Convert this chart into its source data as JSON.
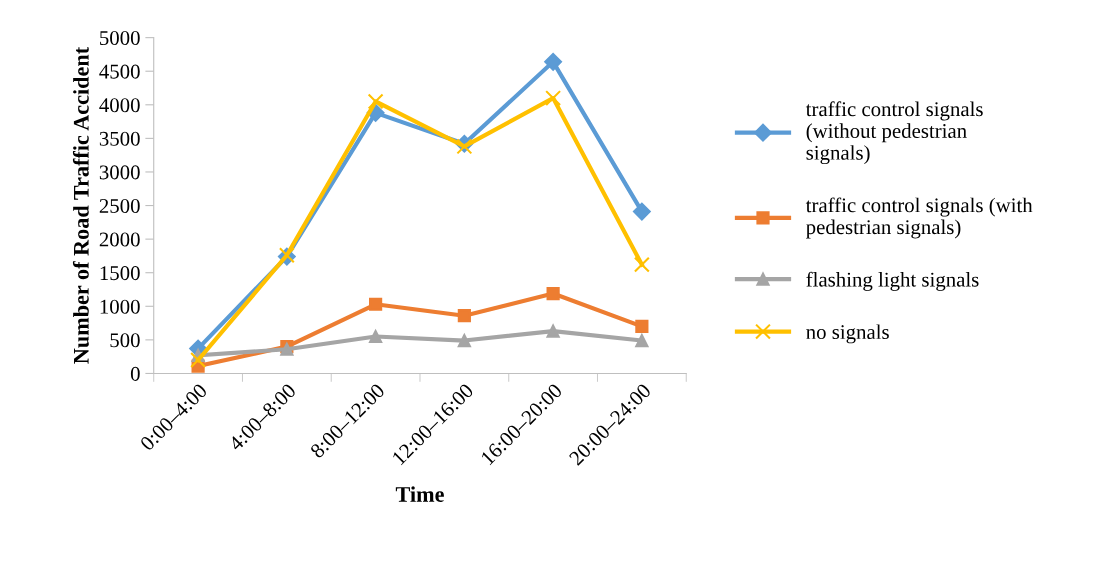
{
  "chart_data": {
    "type": "line",
    "xlabel": "Time",
    "ylabel": "Number of Road Traffic Accident",
    "categories": [
      "0:00–4:00",
      "4:00–8:00",
      "8:00–12:00",
      "12:00–16:00",
      "16:00–20:00",
      "20:00–24:00"
    ],
    "series": [
      {
        "name": "traffic control signals\n(without pedestrian\nsignals)",
        "color": "#5b9bd5",
        "marker": "diamond",
        "values": [
          370,
          1740,
          3880,
          3420,
          4640,
          2410
        ]
      },
      {
        "name": "traffic control signals (with\npedestrian signals)",
        "color": "#ed7d31",
        "marker": "square",
        "values": [
          110,
          400,
          1030,
          860,
          1190,
          700
        ]
      },
      {
        "name": "flashing light signals",
        "color": "#a5a5a5",
        "marker": "triangle",
        "values": [
          270,
          360,
          550,
          490,
          630,
          490
        ]
      },
      {
        "name": "no signals",
        "color": "#ffc000",
        "marker": "cross",
        "values": [
          200,
          1760,
          4050,
          3380,
          4100,
          1620
        ]
      }
    ],
    "ylim": [
      0,
      5000
    ],
    "yticks": [
      0,
      500,
      1000,
      1500,
      2000,
      2500,
      3000,
      3500,
      4000,
      4500,
      5000
    ],
    "grid": false,
    "legend": "right",
    "line_style": "solid"
  }
}
